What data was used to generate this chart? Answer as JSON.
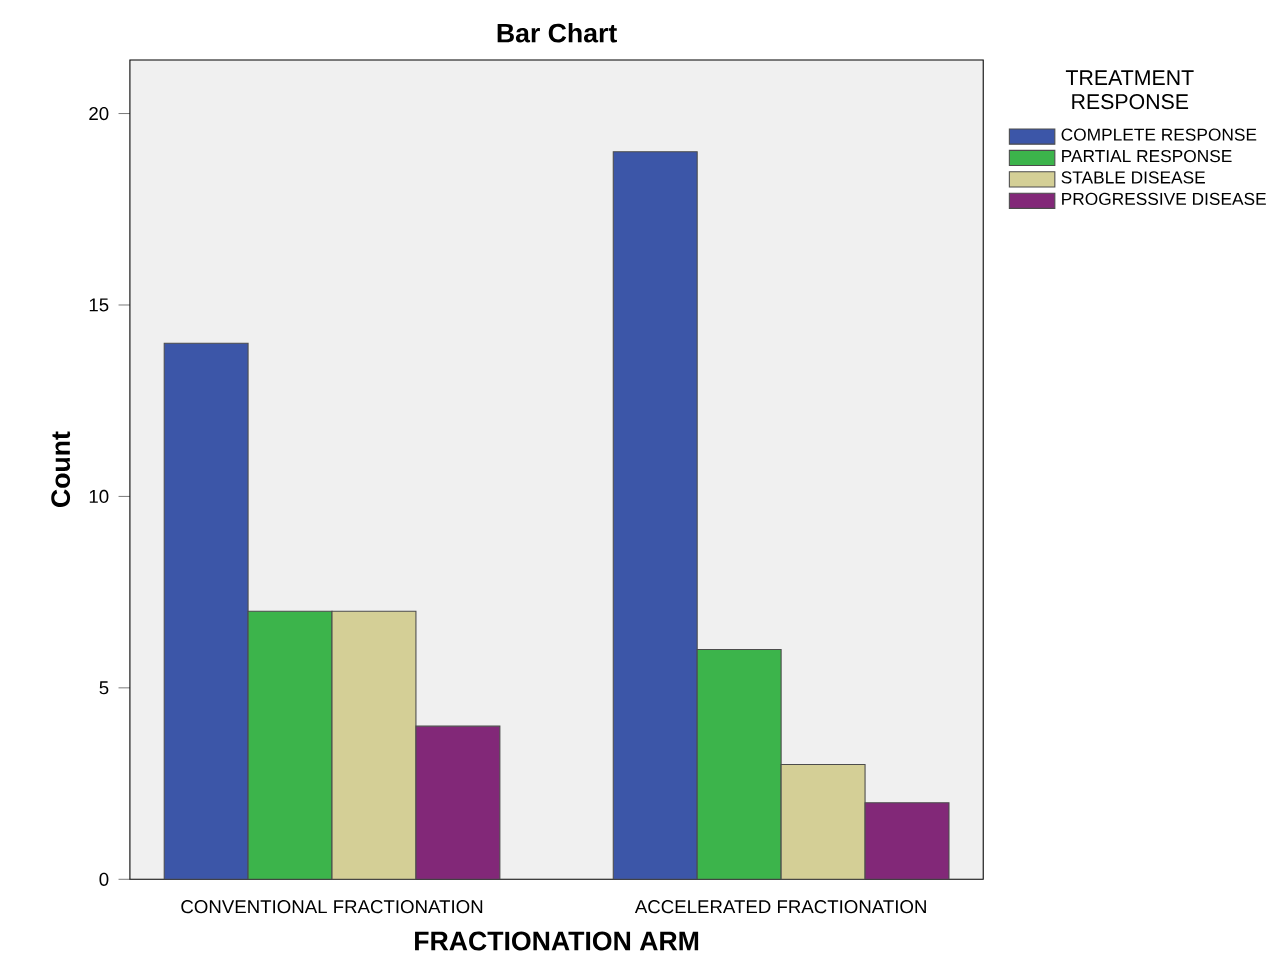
{
  "chart_data": {
    "type": "bar",
    "title": "Bar Chart",
    "xlabel": "FRACTIONATION ARM",
    "ylabel": "Count",
    "legend_title": "TREATMENT RESPONSE",
    "categories": [
      "CONVENTIONAL FRACTIONATION",
      "ACCELERATED FRACTIONATION"
    ],
    "series": [
      {
        "name": "COMPLETE RESPONSE",
        "color": "#3c56a8",
        "values": [
          14,
          19
        ]
      },
      {
        "name": "PARTIAL RESPONSE",
        "color": "#3cb44b",
        "values": [
          7,
          6
        ]
      },
      {
        "name": "STABLE DISEASE",
        "color": "#d4cf96",
        "values": [
          7,
          3
        ]
      },
      {
        "name": "PROGRESSIVE DISEASE",
        "color": "#822878",
        "values": [
          4,
          2
        ]
      }
    ],
    "ylim": [
      0,
      21.4
    ],
    "yticks": [
      0,
      5,
      10,
      15,
      20
    ],
    "grid": false,
    "legend": "right"
  }
}
